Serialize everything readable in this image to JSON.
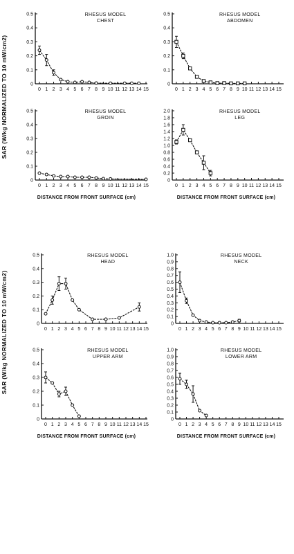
{
  "figure": {
    "y_axis_label_top": "SAR (W/kg NORMALIZED TO 10 mW/cm2)",
    "y_axis_label_bottom": "SAR (W/kg NORMALIZED TO 10 mW/cm2)",
    "x_axis_label_top": "DISTANCE FROM FRONT SURFACE (cm)",
    "x_axis_label_bottom": "DISTANCE FROM FRONT SURFACE (cm)"
  },
  "chart_data": [
    {
      "id": "chest",
      "type": "line",
      "title_line1": "RHESUS MODEL",
      "title_line2": "CHEST",
      "ylim": [
        0,
        0.5
      ],
      "y_ticks": [
        "0",
        "0.1",
        "0.2",
        "0.3",
        "0.4",
        "0.5"
      ],
      "x_ticks": [
        "0",
        "1",
        "2",
        "3",
        "4",
        "5",
        "6",
        "7",
        "8",
        "9",
        "10",
        "11",
        "12",
        "13",
        "14",
        "15"
      ],
      "marker": "circle",
      "points": [
        {
          "x": 0,
          "y": 0.24,
          "err": 0.03
        },
        {
          "x": 1,
          "y": 0.17,
          "err": 0.04
        },
        {
          "x": 2,
          "y": 0.08,
          "err": 0.02
        },
        {
          "x": 3,
          "y": 0.03
        },
        {
          "x": 4,
          "y": 0.015
        },
        {
          "x": 5,
          "y": 0.01
        },
        {
          "x": 6,
          "y": 0.015
        },
        {
          "x": 7,
          "y": 0.01
        },
        {
          "x": 8,
          "y": 0.005
        },
        {
          "x": 10,
          "y": 0.004
        },
        {
          "x": 12,
          "y": 0.004
        },
        {
          "x": 13,
          "y": 0.004
        },
        {
          "x": 14,
          "y": 0.004
        }
      ]
    },
    {
      "id": "abdomen",
      "type": "line",
      "title_line1": "RHESUS MODEL",
      "title_line2": "ABDOMEN",
      "ylim": [
        0,
        0.5
      ],
      "y_ticks": [
        "0",
        "0.1",
        "0.2",
        "0.3",
        "0.4",
        "0.5"
      ],
      "x_ticks": [
        "0",
        "1",
        "2",
        "3",
        "4",
        "5",
        "6",
        "7",
        "8",
        "9",
        "10",
        "11",
        "12",
        "13",
        "14",
        "15"
      ],
      "marker": "square",
      "points": [
        {
          "x": 0,
          "y": 0.3,
          "err": 0.04
        },
        {
          "x": 1,
          "y": 0.2,
          "err": 0.02
        },
        {
          "x": 2,
          "y": 0.11
        },
        {
          "x": 3,
          "y": 0.05
        },
        {
          "x": 4,
          "y": 0.02
        },
        {
          "x": 5,
          "y": 0.01
        },
        {
          "x": 6,
          "y": 0.005
        },
        {
          "x": 7,
          "y": 0.005
        },
        {
          "x": 8,
          "y": 0.003
        },
        {
          "x": 9,
          "y": 0.003
        },
        {
          "x": 10,
          "y": 0.003
        }
      ]
    },
    {
      "id": "groin",
      "type": "line",
      "title_line1": "RHESUS MODEL",
      "title_line2": "GROIN",
      "ylim": [
        0,
        0.5
      ],
      "y_ticks": [
        "0",
        "0.1",
        "0.2",
        "0.3",
        "0.4",
        "0.5"
      ],
      "x_ticks": [
        "0",
        "1",
        "2",
        "3",
        "4",
        "5",
        "6",
        "7",
        "8",
        "9",
        "10",
        "11",
        "12",
        "13",
        "14",
        "15"
      ],
      "marker": "circle",
      "points": [
        {
          "x": 0,
          "y": 0.05
        },
        {
          "x": 1,
          "y": 0.04
        },
        {
          "x": 2,
          "y": 0.03
        },
        {
          "x": 3,
          "y": 0.025
        },
        {
          "x": 4,
          "y": 0.025
        },
        {
          "x": 5,
          "y": 0.02
        },
        {
          "x": 6,
          "y": 0.02
        },
        {
          "x": 7,
          "y": 0.02
        },
        {
          "x": 8,
          "y": 0.015
        },
        {
          "x": 9,
          "y": 0.01
        },
        {
          "x": 10,
          "y": 0.008
        },
        {
          "x": 15,
          "y": 0.005
        }
      ]
    },
    {
      "id": "leg",
      "type": "line",
      "title_line1": "RHESUS MODEL",
      "title_line2": "LEG",
      "ylim": [
        0,
        2.0
      ],
      "y_ticks": [
        "0",
        "0.2",
        "0.4",
        "0.6",
        "0.8",
        "1.0",
        "1.2",
        "1.4",
        "1.6",
        "1.8",
        "2.0"
      ],
      "x_ticks": [
        "0",
        "1",
        "2",
        "3",
        "4",
        "5",
        "6",
        "7",
        "8",
        "9",
        "10",
        "11",
        "12",
        "13",
        "14",
        "15"
      ],
      "marker": "square",
      "points": [
        {
          "x": 0,
          "y": 1.1,
          "err": 0.06
        },
        {
          "x": 1,
          "y": 1.45,
          "err": 0.15
        },
        {
          "x": 2,
          "y": 1.15
        },
        {
          "x": 3,
          "y": 0.8
        },
        {
          "x": 4,
          "y": 0.5,
          "err": 0.2
        },
        {
          "x": 5,
          "y": 0.2,
          "err": 0.08
        }
      ]
    },
    {
      "id": "head",
      "type": "line",
      "title_line1": "RHESUS MODEL",
      "title_line2": "HEAD",
      "ylim": [
        0,
        0.5
      ],
      "y_ticks": [
        "0",
        "0.1",
        "0.2",
        "0.3",
        "0.4",
        "0.5"
      ],
      "x_ticks": [
        "0",
        "1",
        "2",
        "3",
        "4",
        "5",
        "6",
        "7",
        "8",
        "9",
        "10",
        "11",
        "12",
        "13",
        "14",
        "15"
      ],
      "marker": "circle",
      "points": [
        {
          "x": 0,
          "y": 0.07
        },
        {
          "x": 1,
          "y": 0.17,
          "err": 0.03
        },
        {
          "x": 2,
          "y": 0.29,
          "err": 0.05
        },
        {
          "x": 3,
          "y": 0.29,
          "err": 0.04
        },
        {
          "x": 4,
          "y": 0.17
        },
        {
          "x": 5,
          "y": 0.1
        },
        {
          "x": 7,
          "y": 0.03
        },
        {
          "x": 9,
          "y": 0.03
        },
        {
          "x": 11,
          "y": 0.04
        },
        {
          "x": 14,
          "y": 0.12,
          "err": 0.03
        }
      ]
    },
    {
      "id": "neck",
      "type": "line",
      "title_line1": "RHESUS MODEL",
      "title_line2": "NECK",
      "ylim": [
        0,
        1.0
      ],
      "y_ticks": [
        "0",
        "0.1",
        "0.2",
        "0.3",
        "0.4",
        "0.5",
        "0.6",
        "0.7",
        "0.8",
        "0.9",
        "1.0"
      ],
      "x_ticks": [
        "0",
        "1",
        "2",
        "3",
        "4",
        "5",
        "6",
        "7",
        "8",
        "9",
        "10",
        "11",
        "12",
        "13",
        "14",
        "15"
      ],
      "marker": "circle",
      "points": [
        {
          "x": 0,
          "y": 0.6,
          "err": 0.15
        },
        {
          "x": 1,
          "y": 0.33,
          "err": 0.04
        },
        {
          "x": 2,
          "y": 0.12
        },
        {
          "x": 3,
          "y": 0.04
        },
        {
          "x": 4,
          "y": 0.02
        },
        {
          "x": 5,
          "y": 0.01
        },
        {
          "x": 6,
          "y": 0.01
        },
        {
          "x": 7,
          "y": 0.01
        },
        {
          "x": 8,
          "y": 0.02
        },
        {
          "x": 9,
          "y": 0.04,
          "err": 0.02
        }
      ]
    },
    {
      "id": "upper-arm",
      "type": "line",
      "title_line1": "RHESUS MODEL",
      "title_line2": "UPPER ARM",
      "ylim": [
        0,
        0.5
      ],
      "y_ticks": [
        "0",
        "0.1",
        "0.2",
        "0.3",
        "0.4",
        "0.5"
      ],
      "x_ticks": [
        "0",
        "1",
        "2",
        "3",
        "4",
        "5",
        "6",
        "7",
        "8",
        "9",
        "10",
        "11",
        "12",
        "13",
        "14",
        "15"
      ],
      "marker": "circle",
      "points": [
        {
          "x": 0,
          "y": 0.3,
          "err": 0.04
        },
        {
          "x": 1,
          "y": 0.26
        },
        {
          "x": 2,
          "y": 0.18,
          "err": 0.02
        },
        {
          "x": 3,
          "y": 0.2,
          "err": 0.03
        },
        {
          "x": 4,
          "y": 0.1
        },
        {
          "x": 5,
          "y": 0.02
        }
      ]
    },
    {
      "id": "lower-arm",
      "type": "line",
      "title_line1": "RHESUS MODEL",
      "title_line2": "LOWER ARM",
      "ylim": [
        0,
        1.0
      ],
      "y_ticks": [
        "0",
        "0.1",
        "0.2",
        "0.3",
        "0.4",
        "0.5",
        "0.6",
        "0.7",
        "0.8",
        "0.9",
        "1.0"
      ],
      "x_ticks": [
        "0",
        "1",
        "2",
        "3",
        "4",
        "5",
        "6",
        "7",
        "8",
        "9",
        "10",
        "11",
        "12",
        "13",
        "14",
        "15"
      ],
      "marker": "circle",
      "points": [
        {
          "x": 0,
          "y": 0.58,
          "err": 0.08
        },
        {
          "x": 1,
          "y": 0.5,
          "err": 0.06
        },
        {
          "x": 2,
          "y": 0.36,
          "err": 0.12
        },
        {
          "x": 3,
          "y": 0.12
        },
        {
          "x": 4,
          "y": 0.05
        }
      ]
    }
  ]
}
